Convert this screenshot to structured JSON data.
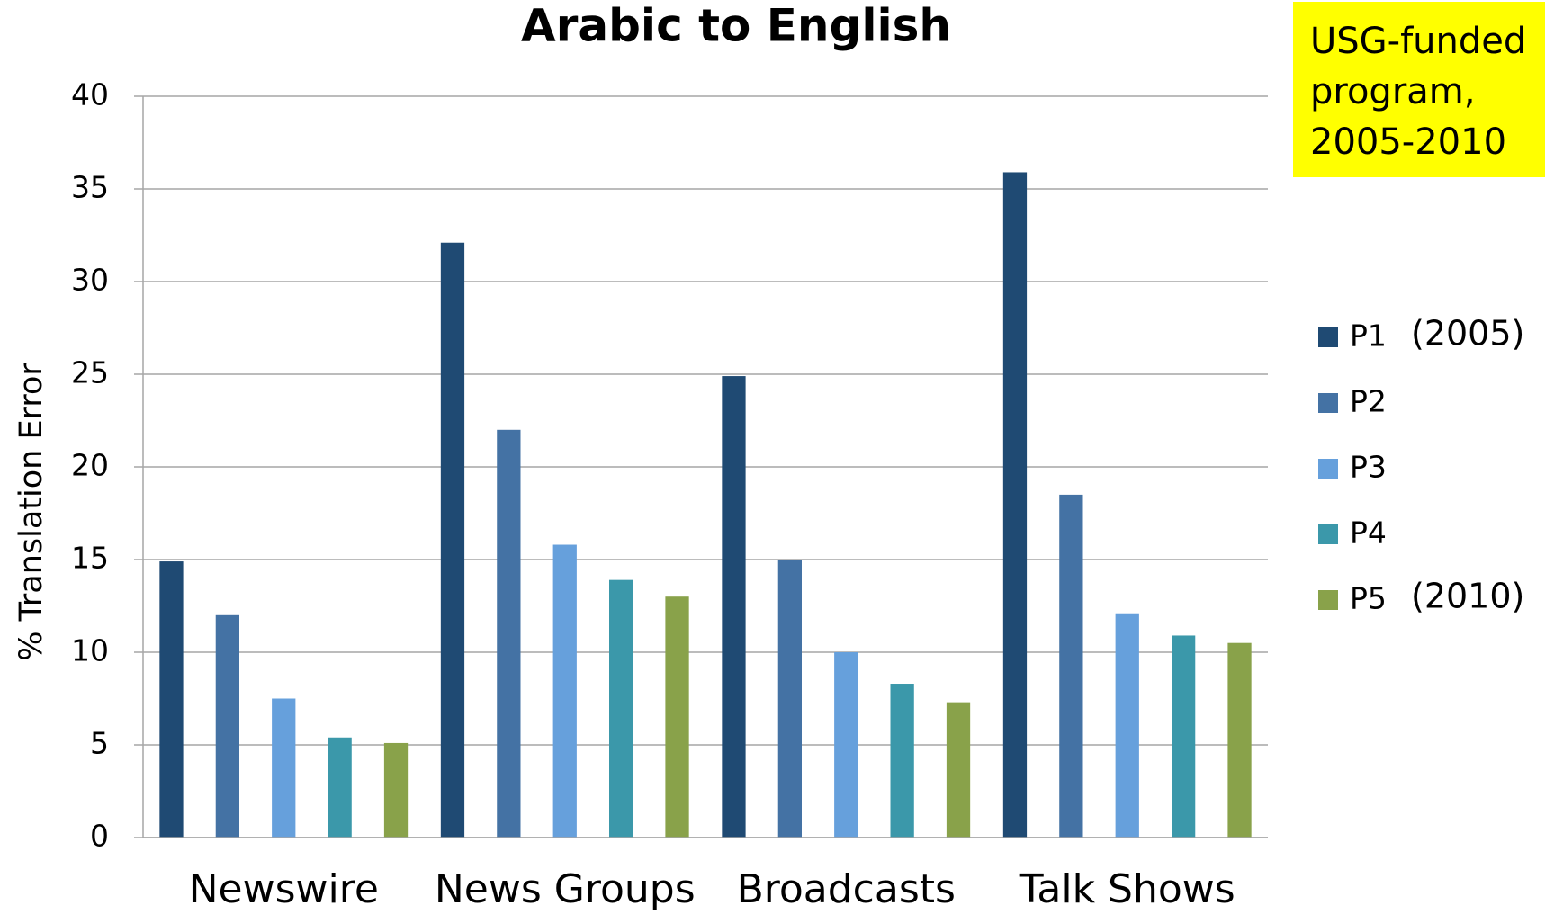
{
  "chart_data": {
    "type": "bar",
    "title": "Arabic to English",
    "y_label": "% Translation Error",
    "note": [
      "USG-funded",
      "program,",
      "2005-2010"
    ],
    "note_color": "#ffff00",
    "annotations": [
      {
        "text": "(2005)",
        "series": 0
      },
      {
        "text": "(2010)",
        "series": 4
      }
    ],
    "categories": [
      "Newswire",
      "News Groups",
      "Broadcasts",
      "Talk Shows"
    ],
    "series": [
      {
        "name": "P1",
        "color": "#1f4a73",
        "values": [
          14.9,
          32.1,
          24.9,
          35.9
        ]
      },
      {
        "name": "P2",
        "color": "#4472a4",
        "values": [
          12,
          22,
          15,
          18.5
        ]
      },
      {
        "name": "P3",
        "color": "#66a0dc",
        "values": [
          7.5,
          15.8,
          10,
          12.1
        ]
      },
      {
        "name": "P4",
        "color": "#3b98aa",
        "values": [
          5.4,
          13.9,
          8.3,
          10.9
        ]
      },
      {
        "name": "P5",
        "color": "#89a24a",
        "values": [
          5.1,
          13,
          7.3,
          10.5
        ]
      }
    ],
    "ylim": [
      0,
      40
    ],
    "yticks": [
      0,
      5,
      10,
      15,
      20,
      25,
      30,
      35,
      40
    ],
    "grid": true,
    "legend": "right"
  }
}
